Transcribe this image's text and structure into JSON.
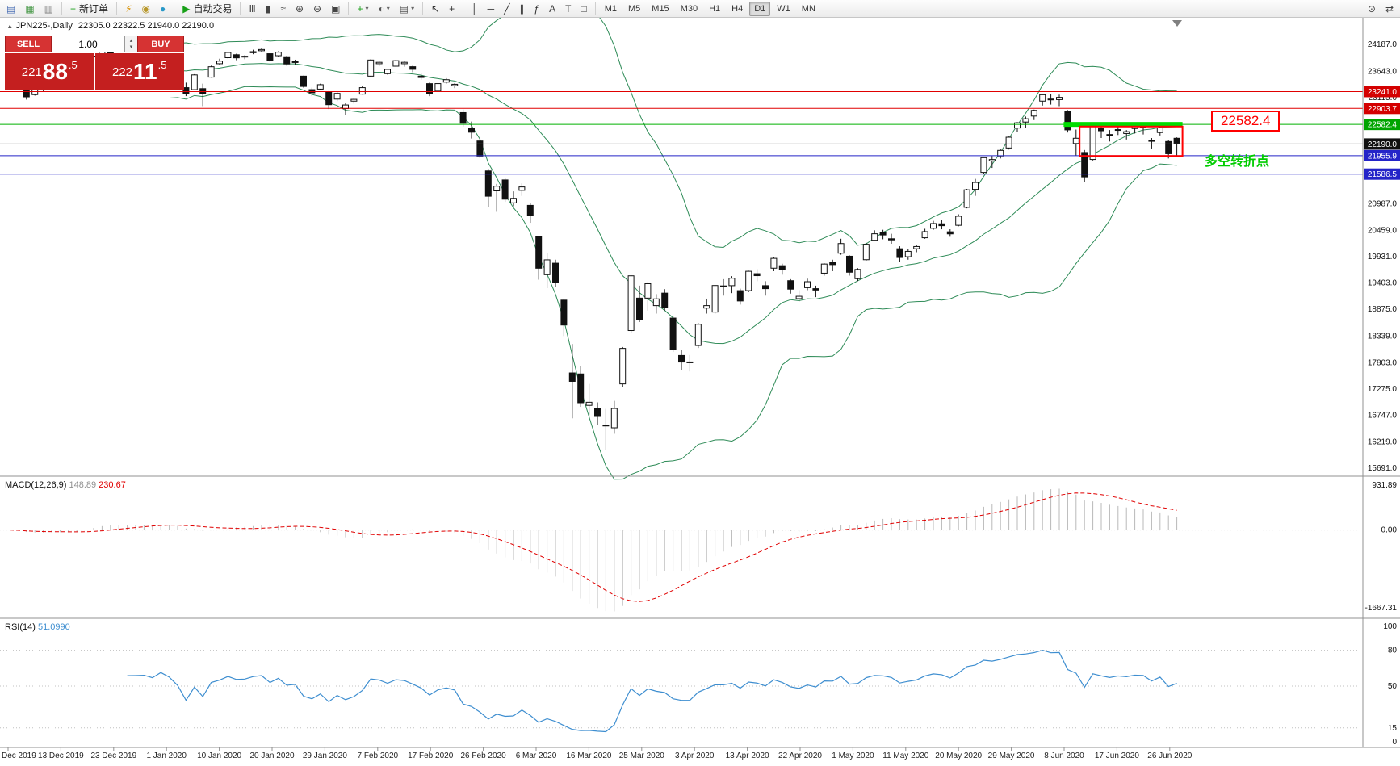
{
  "toolbar": {
    "groups": [
      {
        "buttons": [
          {
            "name": "new-chart",
            "glyph": "▤",
            "color": "#4a6fb5"
          },
          {
            "name": "profiles",
            "glyph": "▦",
            "color": "#4a9a4a"
          },
          {
            "name": "chart-window",
            "glyph": "▥",
            "color": "#777777"
          }
        ]
      },
      {
        "buttons": [
          {
            "name": "new-order",
            "glyph": "+",
            "color": "#18a018",
            "label": "新订单"
          }
        ]
      },
      {
        "buttons": [
          {
            "name": "expert-advisors",
            "glyph": "⚡",
            "color": "#d89000"
          },
          {
            "name": "history-center",
            "glyph": "◉",
            "color": "#b8972a"
          },
          {
            "name": "web-terminal",
            "glyph": "●",
            "color": "#2898c8"
          }
        ]
      },
      {
        "buttons": [
          {
            "name": "auto-trading",
            "glyph": "▶",
            "color": "#18a018",
            "label": "自动交易"
          }
        ]
      },
      {
        "buttons": [
          {
            "name": "bar-chart-mode",
            "glyph": "Ⅲ",
            "color": "#444444"
          },
          {
            "name": "candlestick-mode",
            "glyph": "▮",
            "color": "#444444"
          },
          {
            "name": "line-chart-mode",
            "glyph": "≈",
            "color": "#444444"
          },
          {
            "name": "zoom-in",
            "glyph": "⊕",
            "color": "#444444"
          },
          {
            "name": "zoom-out",
            "glyph": "⊖",
            "color": "#444444"
          },
          {
            "name": "tile-windows",
            "glyph": "▣",
            "color": "#444444"
          }
        ]
      },
      {
        "buttons": [
          {
            "name": "indicators",
            "glyph": "+",
            "color": "#18a018",
            "caret": true
          },
          {
            "name": "periods",
            "glyph": "◐",
            "color": "#555555",
            "caret": true
          },
          {
            "name": "templates",
            "glyph": "▤",
            "color": "#555555",
            "caret": true
          }
        ]
      },
      {
        "buttons": [
          {
            "name": "cursor-tool",
            "glyph": "↖",
            "color": "#333333"
          },
          {
            "name": "crosshair-tool",
            "glyph": "+",
            "color": "#333333"
          }
        ]
      },
      {
        "buttons": [
          {
            "name": "vertical-line-tool",
            "glyph": "│",
            "color": "#333333"
          },
          {
            "name": "horizontal-line-tool",
            "glyph": "─",
            "color": "#333333"
          },
          {
            "name": "trendline-tool",
            "glyph": "╱",
            "color": "#333333"
          },
          {
            "name": "equidistant-channel-tool",
            "glyph": "∥",
            "color": "#333333"
          },
          {
            "name": "fibonacci-tool",
            "glyph": "ƒ",
            "color": "#333333"
          },
          {
            "name": "text-tool",
            "glyph": "A",
            "color": "#333333"
          },
          {
            "name": "arrow-tool",
            "glyph": "T",
            "color": "#333333"
          },
          {
            "name": "shapes-tool",
            "glyph": "□",
            "color": "#333333"
          }
        ]
      }
    ],
    "timeframes": {
      "items": [
        "M1",
        "M5",
        "M15",
        "M30",
        "H1",
        "H4",
        "D1",
        "W1",
        "MN"
      ],
      "active": "D1"
    },
    "right_buttons": [
      {
        "name": "search",
        "glyph": "⊙",
        "color": "#444444"
      },
      {
        "name": "chart-scroll",
        "glyph": "⇄",
        "color": "#444444"
      }
    ]
  },
  "chart_header": {
    "collapse_icon": "▴",
    "title": "JPN225-,Daily",
    "ohlc": "22305.0 22322.5 21940.0 22190.0"
  },
  "one_click": {
    "sell_label": "SELL",
    "buy_label": "BUY",
    "volume": "1.00",
    "spin_up": "▴",
    "spin_down": "▾",
    "sell_price": {
      "prefix": "221",
      "big": "88",
      "suffix": ".5"
    },
    "buy_price": {
      "prefix": "222",
      "big": "11",
      "suffix": ".5"
    }
  },
  "levels": [
    {
      "price": 23241.0,
      "color": "#e00000",
      "label_bg": "#d40000"
    },
    {
      "price": 22903.7,
      "color": "#e00000",
      "label_bg": "#d40000"
    },
    {
      "price": 22582.4,
      "color": "#00b000",
      "label_bg": "#00a400"
    },
    {
      "price": 21955.9,
      "color": "#2424c8",
      "label_bg": "#2424c8"
    },
    {
      "price": 21586.5,
      "color": "#2424c8",
      "label_bg": "#2424c8"
    }
  ],
  "current_price": {
    "value": 22190.0,
    "label_bg": "#101010",
    "line_color": "#606060"
  },
  "price_axis": {
    "labels": [
      24187.0,
      23643.0,
      23115.0,
      20987.0,
      20459.0,
      19931.0,
      19403.0,
      18875.0,
      18339.0,
      17803.0,
      17275.0,
      16747.0,
      16219.0,
      15691.0
    ]
  },
  "panes": {
    "macd": {
      "label": "MACD(12,26,9)",
      "main_value": "148.89",
      "signal_value": "230.67",
      "axis_labels": [
        "931.89",
        "0.00",
        "-1667.31"
      ],
      "axis_max": 931.89,
      "axis_min": -1667.31
    },
    "rsi": {
      "label": "RSI(14)",
      "value": "51.0990",
      "axis_labels": [
        100,
        80,
        50,
        15,
        0
      ],
      "levels": [
        80,
        50,
        15
      ]
    }
  },
  "annotations": {
    "supply_bar": {
      "color": "#00dd00",
      "price": 22582.4,
      "from_index": 126,
      "to_index": 139
    },
    "range_box": {
      "color": "#ff0000",
      "from_index": 128,
      "to_index": 139,
      "top_price": 22540,
      "bottom_price": 21950
    },
    "price_callout": {
      "text": "22582.4",
      "color": "#ff0000"
    },
    "note": {
      "text": "多空转折点",
      "color": "#00cc00"
    }
  },
  "dates": [
    "Dec 2019",
    "13 Dec 2019",
    "23 Dec 2019",
    "1 Jan 2020",
    "10 Jan 2020",
    "20 Jan 2020",
    "29 Jan 2020",
    "7 Feb 2020",
    "17 Feb 2020",
    "26 Feb 2020",
    "6 Mar 2020",
    "16 Mar 2020",
    "25 Mar 2020",
    "3 Apr 2020",
    "13 Apr 2020",
    "22 Apr 2020",
    "1 May 2020",
    "11 May 2020",
    "20 May 2020",
    "29 May 2020",
    "8 Jun 2020",
    "17 Jun 2020",
    "26 Jun 2020"
  ],
  "chart_data": {
    "type": "candlestick",
    "symbol": "JPN225-",
    "timeframe": "Daily",
    "last_ohlc": {
      "open": 22305.0,
      "high": 22322.5,
      "low": 21940.0,
      "close": 22190.0
    },
    "price_range": {
      "top": 24187.0,
      "bottom": 15691.0
    },
    "overlays": {
      "bollinger_period": 20,
      "bollinger_deviation": 2
    },
    "indicators": {
      "macd": [
        12,
        26,
        9
      ],
      "rsi": [
        14
      ]
    },
    "candles": [
      [
        23450,
        23550,
        23420,
        23529
      ],
      [
        23510,
        23520,
        23300,
        23380
      ],
      [
        23300,
        23350,
        23080,
        23135
      ],
      [
        23180,
        23330,
        23160,
        23300
      ],
      [
        23310,
        23390,
        23250,
        23354
      ],
      [
        23400,
        23460,
        23350,
        23430
      ],
      [
        23420,
        23450,
        23330,
        23410
      ],
      [
        23400,
        23440,
        23350,
        23392
      ],
      [
        23400,
        23480,
        23360,
        23425
      ],
      [
        23600,
        23980,
        23580,
        23952
      ],
      [
        23940,
        23990,
        23870,
        23952
      ],
      [
        23970,
        24090,
        23950,
        24066
      ],
      [
        24040,
        24050,
        23900,
        23934
      ],
      [
        23930,
        23970,
        23840,
        23865
      ],
      [
        23880,
        23920,
        23790,
        23817
      ],
      [
        23810,
        23860,
        23780,
        23821
      ],
      [
        23820,
        23870,
        23790,
        23830
      ],
      [
        23820,
        23840,
        23760,
        23782
      ],
      [
        23790,
        23940,
        23780,
        23924
      ],
      [
        23920,
        23950,
        23810,
        23837
      ],
      [
        23820,
        23840,
        23620,
        23657
      ],
      [
        23320,
        23420,
        23150,
        23205
      ],
      [
        23280,
        23590,
        23270,
        23575
      ],
      [
        23300,
        23400,
        22950,
        23204
      ],
      [
        23530,
        23760,
        23520,
        23739
      ],
      [
        23800,
        23900,
        23770,
        23851
      ],
      [
        23920,
        24040,
        23900,
        24025
      ],
      [
        23980,
        24000,
        23870,
        23917
      ],
      [
        23950,
        23970,
        23890,
        23933
      ],
      [
        24020,
        24080,
        23990,
        24041
      ],
      [
        24060,
        24120,
        24030,
        24084
      ],
      [
        24000,
        24010,
        23840,
        23864
      ],
      [
        23960,
        24050,
        23930,
        24031
      ],
      [
        23940,
        23960,
        23760,
        23795
      ],
      [
        23840,
        23880,
        23770,
        23827
      ],
      [
        23550,
        23560,
        23320,
        23344
      ],
      [
        23280,
        23320,
        23150,
        23216
      ],
      [
        23290,
        23400,
        23270,
        23379
      ],
      [
        23240,
        23250,
        22890,
        22978
      ],
      [
        23090,
        23240,
        23050,
        23205
      ],
      [
        22900,
        23010,
        22780,
        22972
      ],
      [
        23050,
        23110,
        23000,
        23085
      ],
      [
        23190,
        23360,
        23180,
        23320
      ],
      [
        23550,
        23890,
        23540,
        23874
      ],
      [
        23800,
        23850,
        23750,
        23828
      ],
      [
        23600,
        23700,
        23580,
        23686
      ],
      [
        23750,
        23880,
        23740,
        23861
      ],
      [
        23800,
        23850,
        23740,
        23828
      ],
      [
        23740,
        23760,
        23630,
        23687
      ],
      [
        23550,
        23600,
        23480,
        23523
      ],
      [
        23400,
        23420,
        23150,
        23193
      ],
      [
        23250,
        23410,
        23240,
        23401
      ],
      [
        23430,
        23510,
        23400,
        23479
      ],
      [
        23360,
        23410,
        23310,
        23387
      ],
      [
        22820,
        22880,
        22540,
        22605
      ],
      [
        22500,
        22640,
        22300,
        22426
      ],
      [
        22250,
        22290,
        21910,
        21948
      ],
      [
        21650,
        21690,
        20920,
        21143
      ],
      [
        21250,
        21390,
        20830,
        21344
      ],
      [
        21470,
        21500,
        21030,
        21083
      ],
      [
        21010,
        21240,
        20940,
        21100
      ],
      [
        21260,
        21400,
        21150,
        21329
      ],
      [
        20960,
        21000,
        20610,
        20750
      ],
      [
        20340,
        20350,
        19470,
        19699
      ],
      [
        19570,
        20010,
        19300,
        19867
      ],
      [
        19800,
        19870,
        19320,
        19416
      ],
      [
        19060,
        19090,
        18340,
        18560
      ],
      [
        17600,
        18180,
        16690,
        17431
      ],
      [
        17580,
        17740,
        16920,
        17002
      ],
      [
        16950,
        17380,
        16750,
        17012
      ],
      [
        16890,
        17010,
        16550,
        16727
      ],
      [
        16550,
        16880,
        16060,
        16553
      ],
      [
        16500,
        17040,
        16380,
        16888
      ],
      [
        17380,
        18120,
        17320,
        18092
      ],
      [
        18450,
        19560,
        18410,
        19547
      ],
      [
        19100,
        19350,
        18620,
        18665
      ],
      [
        19100,
        19420,
        18850,
        19389
      ],
      [
        18950,
        19180,
        18790,
        19085
      ],
      [
        19200,
        19280,
        18850,
        18917
      ],
      [
        18700,
        18730,
        18020,
        18065
      ],
      [
        17950,
        18060,
        17650,
        17818
      ],
      [
        17820,
        17960,
        17630,
        17820
      ],
      [
        18150,
        18600,
        18100,
        18576
      ],
      [
        18900,
        19090,
        18790,
        18950
      ],
      [
        18820,
        19360,
        18790,
        19353
      ],
      [
        19340,
        19480,
        19150,
        19345
      ],
      [
        19350,
        19540,
        19200,
        19499
      ],
      [
        19250,
        19290,
        18970,
        19043
      ],
      [
        19250,
        19650,
        19220,
        19638
      ],
      [
        19590,
        19680,
        19440,
        19550
      ],
      [
        19350,
        19440,
        19150,
        19290
      ],
      [
        19700,
        19930,
        19640,
        19897
      ],
      [
        19750,
        19790,
        19570,
        19669
      ],
      [
        19450,
        19480,
        19190,
        19280
      ],
      [
        19090,
        19260,
        19030,
        19137
      ],
      [
        19310,
        19490,
        19260,
        19429
      ],
      [
        19290,
        19350,
        19120,
        19262
      ],
      [
        19600,
        19800,
        19550,
        19783
      ],
      [
        19820,
        19870,
        19640,
        19771
      ],
      [
        20000,
        20290,
        19970,
        20194
      ],
      [
        19940,
        19960,
        19550,
        19619
      ],
      [
        19490,
        19700,
        19440,
        19675
      ],
      [
        19870,
        20210,
        19850,
        20179
      ],
      [
        20260,
        20460,
        20240,
        20390
      ],
      [
        20410,
        20470,
        20280,
        20366
      ],
      [
        20290,
        20390,
        20190,
        20267
      ],
      [
        20090,
        20140,
        19830,
        19914
      ],
      [
        19930,
        20090,
        19870,
        20037
      ],
      [
        20090,
        20170,
        20020,
        20134
      ],
      [
        20310,
        20490,
        20290,
        20433
      ],
      [
        20500,
        20650,
        20470,
        20595
      ],
      [
        20590,
        20660,
        20480,
        20552
      ],
      [
        20430,
        20480,
        20330,
        20388
      ],
      [
        20560,
        20780,
        20540,
        20741
      ],
      [
        20920,
        21290,
        20900,
        21271
      ],
      [
        21280,
        21490,
        21150,
        21419
      ],
      [
        21620,
        21930,
        21590,
        21916
      ],
      [
        21850,
        21950,
        21710,
        21878
      ],
      [
        21950,
        22090,
        21900,
        22062
      ],
      [
        22110,
        22340,
        22080,
        22326
      ],
      [
        22510,
        22630,
        22440,
        22614
      ],
      [
        22630,
        22740,
        22510,
        22696
      ],
      [
        22750,
        22880,
        22670,
        22864
      ],
      [
        23050,
        23190,
        22960,
        23178
      ],
      [
        23090,
        23200,
        22980,
        23091
      ],
      [
        23080,
        23180,
        22950,
        23125
      ],
      [
        22850,
        22870,
        22420,
        22473
      ],
      [
        22200,
        22480,
        21960,
        22305
      ],
      [
        22020,
        22070,
        21420,
        21531
      ],
      [
        21880,
        22620,
        21860,
        22582
      ],
      [
        22500,
        22560,
        22310,
        22455
      ],
      [
        22380,
        22470,
        22240,
        22355
      ],
      [
        22470,
        22600,
        22370,
        22479
      ],
      [
        22400,
        22470,
        22280,
        22437
      ],
      [
        22500,
        22590,
        22400,
        22549
      ],
      [
        22540,
        22580,
        22380,
        22534
      ],
      [
        22250,
        22310,
        22100,
        22260
      ],
      [
        22420,
        22580,
        22360,
        22512
      ],
      [
        22240,
        22270,
        21900,
        21995
      ],
      [
        22305,
        22322.5,
        21940,
        22190
      ]
    ]
  }
}
